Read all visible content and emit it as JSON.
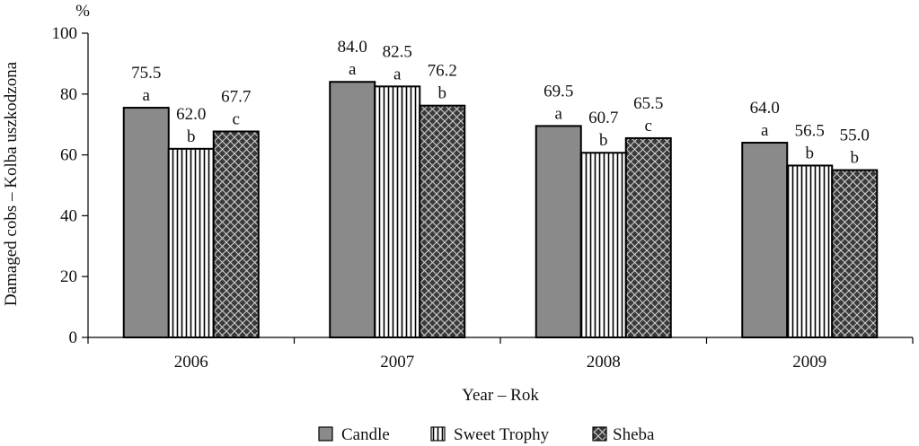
{
  "chart_data": {
    "type": "bar",
    "categories": [
      "2006",
      "2007",
      "2008",
      "2009"
    ],
    "series": [
      {
        "name": "Candle",
        "values": [
          75.5,
          84.0,
          69.5,
          64.0
        ],
        "letters": [
          "a",
          "a",
          "a",
          "a"
        ],
        "pattern": "solid-gray",
        "color": "#8a8a8a"
      },
      {
        "name": "Sweet Trophy",
        "values": [
          62.0,
          82.5,
          60.7,
          56.5
        ],
        "letters": [
          "b",
          "a",
          "b",
          "b"
        ],
        "pattern": "vertical-lines",
        "color": "#ffffff"
      },
      {
        "name": "Sheba",
        "values": [
          67.7,
          76.2,
          65.5,
          55.0
        ],
        "letters": [
          "c",
          "b",
          "c",
          "b"
        ],
        "pattern": "crosshatch-dark",
        "color": "#3a3a3a"
      }
    ],
    "value_labels": [
      [
        "75.5",
        "84.0",
        "69.5",
        "64.0"
      ],
      [
        "62.0",
        "82.5",
        "60.7",
        "56.5"
      ],
      [
        "67.7",
        "76.2",
        "65.5",
        "55.0"
      ]
    ],
    "yticks": [
      "0",
      "20",
      "40",
      "60",
      "80",
      "100"
    ],
    "ylim": [
      0,
      100
    ],
    "ylabel": "Damaged cobs – Kolba uszkodzona",
    "yunit": "%",
    "xlabel": "Year – Rok",
    "legend_position": "bottom",
    "grid": false
  }
}
